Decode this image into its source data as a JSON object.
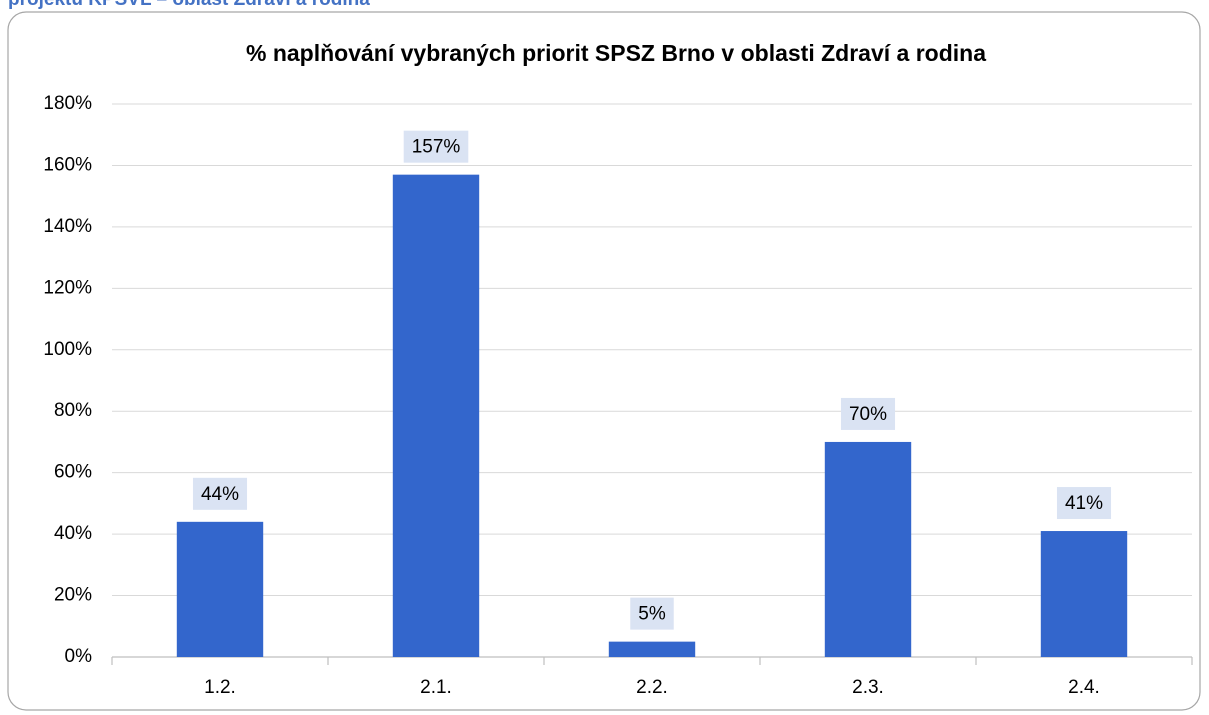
{
  "header": {
    "title": "projektu KPSVL – oblast Zdraví a rodina"
  },
  "chart_data": {
    "type": "bar",
    "title": "% naplňování vybraných priorit SPSZ Brno v oblasti Zdraví a rodina",
    "categories": [
      "1.2.",
      "2.1.",
      "2.2.",
      "2.3.",
      "2.4."
    ],
    "values": [
      44,
      157,
      5,
      70,
      41
    ],
    "value_labels": [
      "44%",
      "157%",
      "5%",
      "70%",
      "41%"
    ],
    "color": "#3366cc",
    "ylim": [
      0,
      180
    ],
    "yticks": [
      {
        "value": 0,
        "label": "0%"
      },
      {
        "value": 20,
        "label": "20%"
      },
      {
        "value": 40,
        "label": "40%"
      },
      {
        "value": 60,
        "label": "60%"
      },
      {
        "value": 80,
        "label": "80%"
      },
      {
        "value": 100,
        "label": "100%"
      },
      {
        "value": 120,
        "label": "120%"
      },
      {
        "value": 140,
        "label": "140%"
      },
      {
        "value": 160,
        "label": "160%"
      },
      {
        "value": 180,
        "label": "180%"
      }
    ],
    "grid": true
  }
}
